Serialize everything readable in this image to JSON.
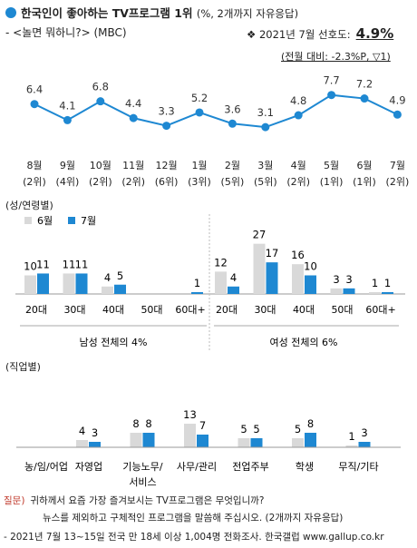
{
  "header": {
    "title": "한국인이 좋아하는 TV프로그램 1위",
    "title_note": "(%, 2개까지 자유응답)",
    "subtitle": "- <놀면 뭐하니?> (MBC)",
    "pref_label": "❖ 2021년 7월 선호도:",
    "pref_value": "4.9%",
    "pref_change": "(전월 대비: -2.3%P, ▽1)"
  },
  "sections": {
    "group": "(성/연령별)",
    "job": "(직업별)"
  },
  "footer": {
    "q_label": "질문)",
    "q_text": "귀하께서 요즘 가장 즐겨보시는 TV프로그램은 무엇입니까?",
    "q_text2": "뉴스를 제외하고 구체적인 프로그램을 말씀해 주십시오. (2개까지 자유응답)",
    "source": "- 2021년 7월 13~15일 전국 만 18세 이상 1,004명 전화조사. 한국갤럽 www.gallup.co.kr"
  },
  "colors": {
    "line": "#1e88d2",
    "june": "#d9d9d9",
    "july": "#1e88d2"
  },
  "chart_data": [
    {
      "type": "line",
      "x": [
        "8월",
        "9월",
        "10월",
        "11월",
        "12월",
        "1월",
        "2월",
        "3월",
        "4월",
        "5월",
        "6월",
        "7월"
      ],
      "ranks": [
        "(2위)",
        "(4위)",
        "(2위)",
        "(2위)",
        "(6위)",
        "(3위)",
        "(5위)",
        "(5위)",
        "(2위)",
        "(1위)",
        "(1위)",
        "(2위)"
      ],
      "values": [
        6.4,
        4.1,
        6.8,
        4.4,
        3.3,
        5.2,
        3.6,
        3.1,
        4.8,
        7.7,
        7.2,
        4.9
      ]
    },
    {
      "type": "bar",
      "legend": [
        "6월",
        "7월"
      ],
      "groups": [
        {
          "label": "남성 전체의 4%",
          "categories": [
            "20대",
            "30대",
            "40대",
            "50대",
            "60대+"
          ],
          "series": [
            {
              "name": "6월",
              "values": [
                10,
                11,
                4,
                null,
                null
              ]
            },
            {
              "name": "7월",
              "values": [
                11,
                11,
                5,
                null,
                1
              ]
            }
          ]
        },
        {
          "label": "여성 전체의 6%",
          "categories": [
            "20대",
            "30대",
            "40대",
            "50대",
            "60대+"
          ],
          "series": [
            {
              "name": "6월",
              "values": [
                12,
                27,
                16,
                3,
                1
              ]
            },
            {
              "name": "7월",
              "values": [
                4,
                17,
                10,
                3,
                1
              ]
            }
          ]
        }
      ]
    },
    {
      "type": "bar",
      "categories": [
        "농/임/어업",
        "자영업",
        "기능노무/\n서비스",
        "사무/관리",
        "전업주부",
        "학생",
        "무직/기타"
      ],
      "series": [
        {
          "name": "6월",
          "values": [
            null,
            4,
            8,
            13,
            5,
            5,
            1
          ]
        },
        {
          "name": "7월",
          "values": [
            null,
            3,
            8,
            7,
            5,
            8,
            3
          ]
        }
      ]
    }
  ]
}
